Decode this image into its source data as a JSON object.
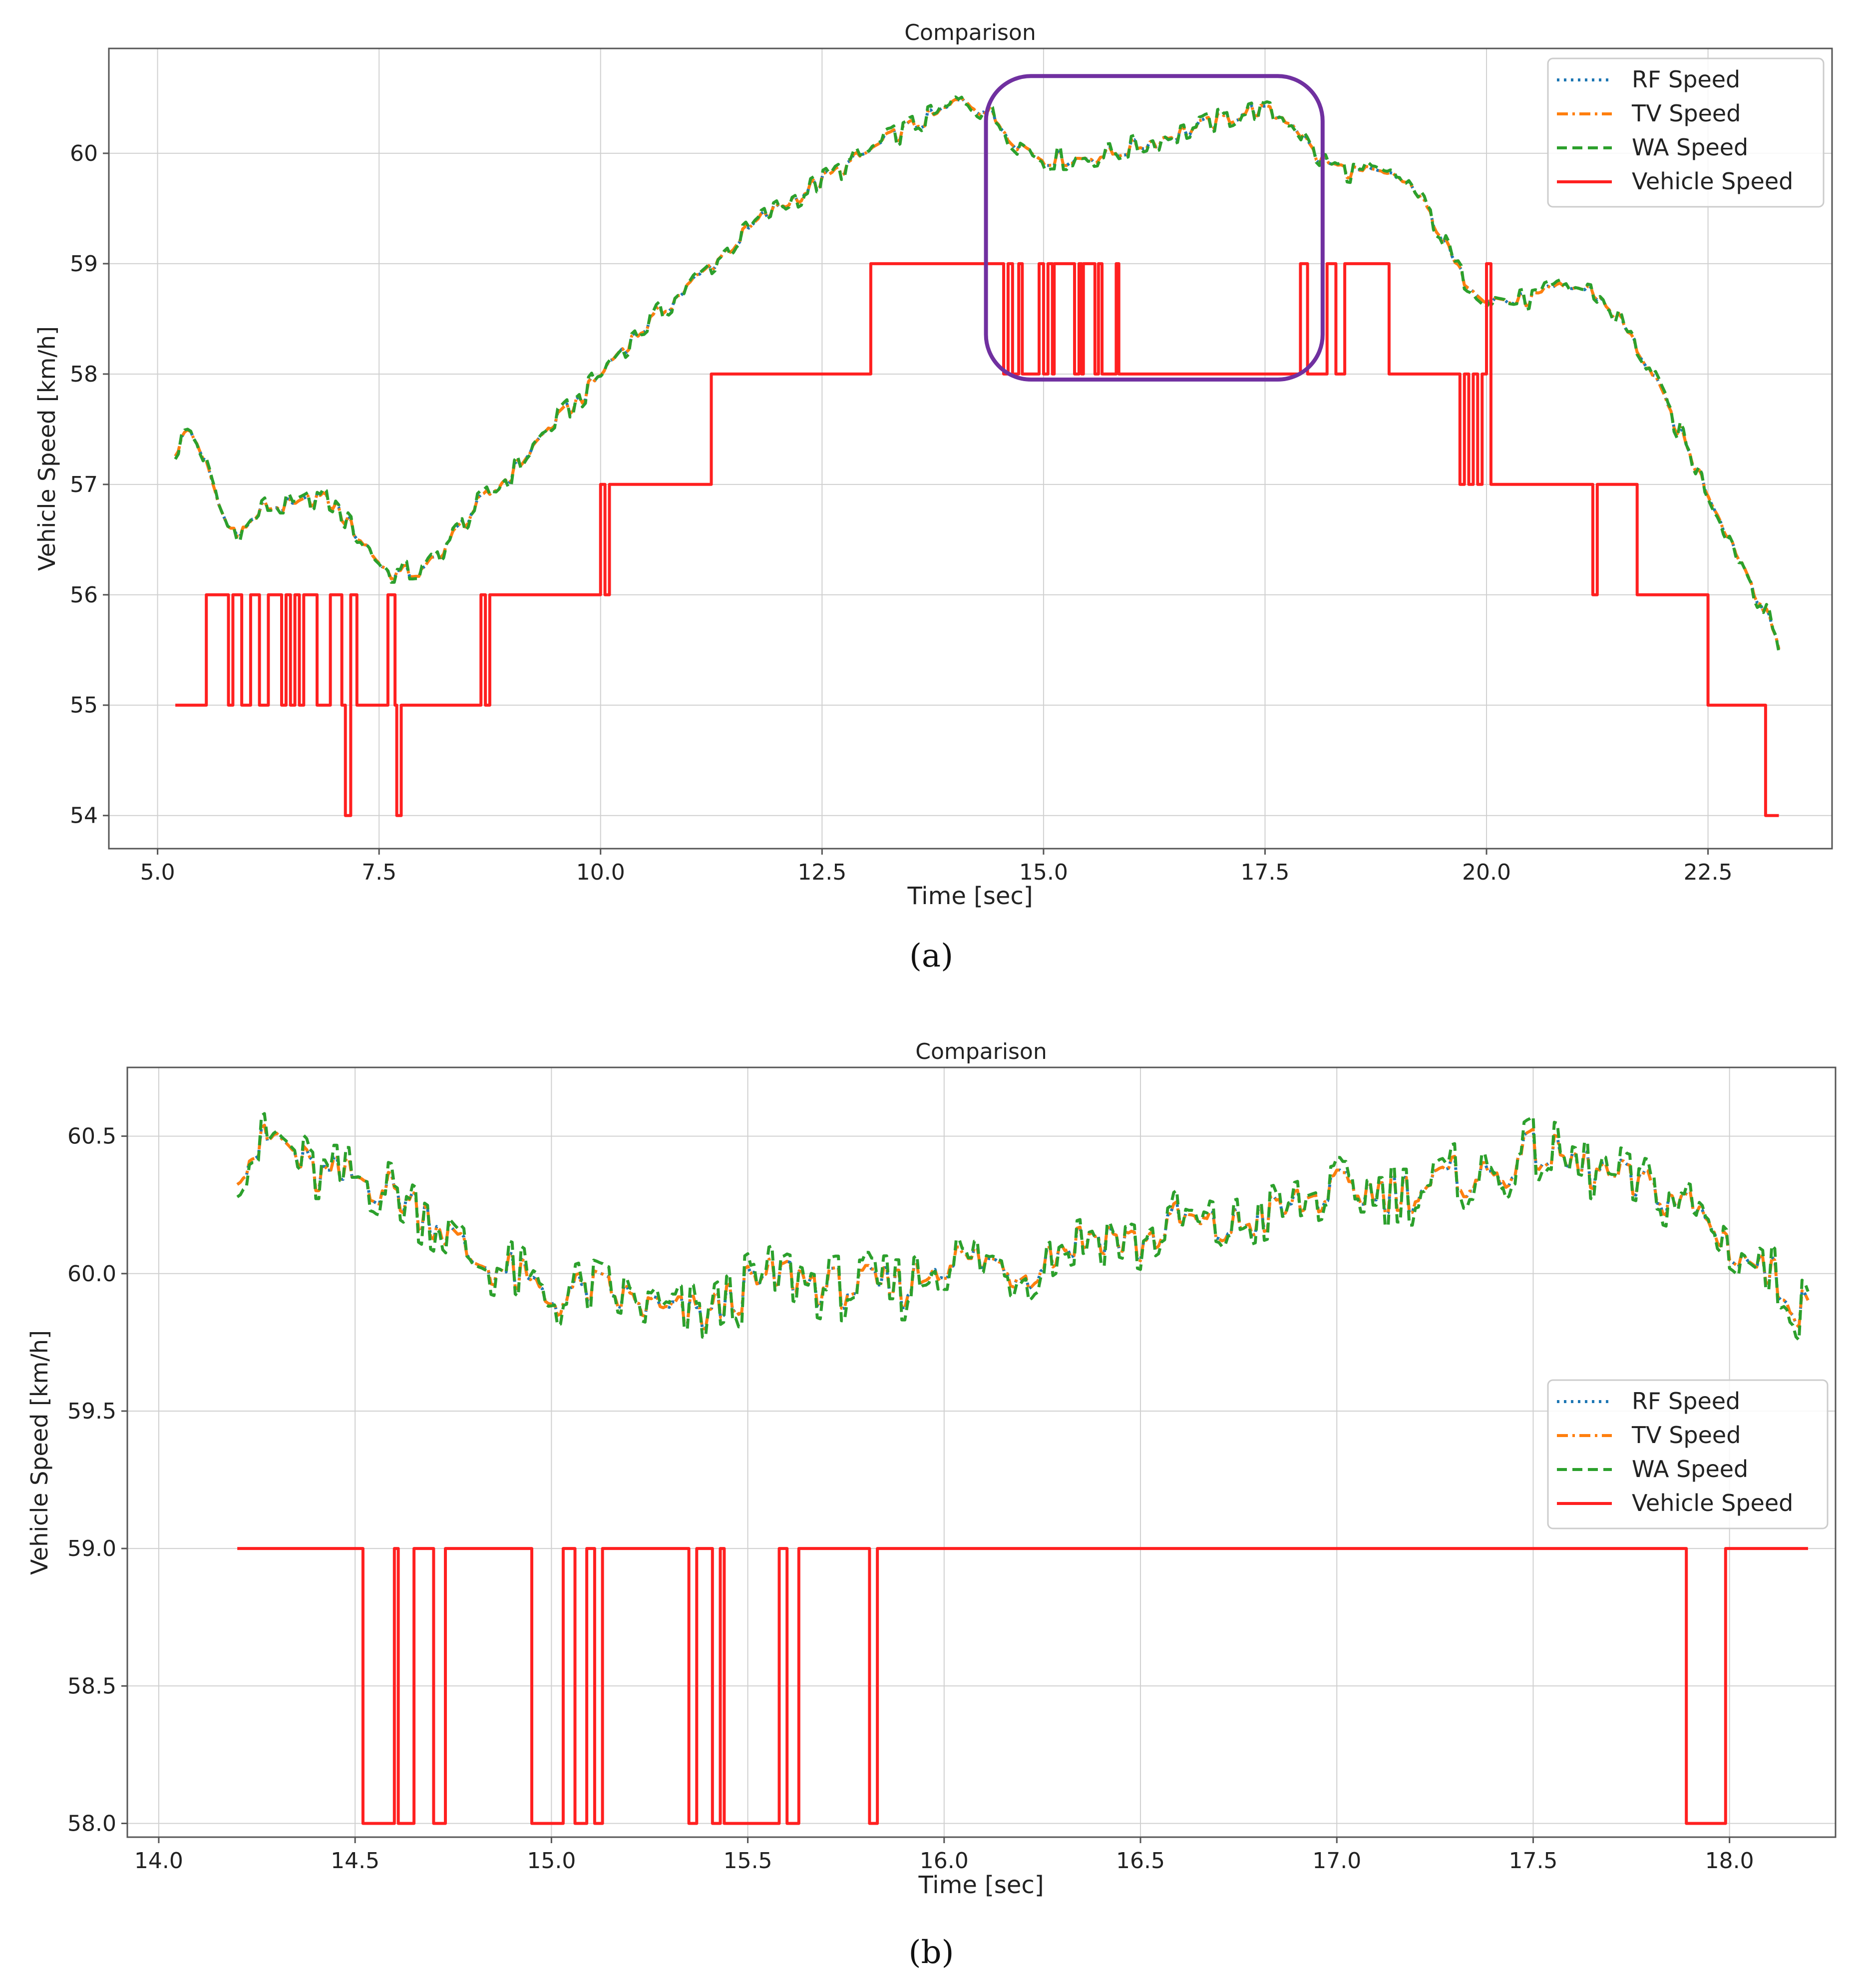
{
  "chart_data": [
    {
      "panel": "a",
      "type": "line",
      "title": "Comparison",
      "xlabel": "Time [sec]",
      "ylabel": "Vehicle Speed [km/h]",
      "xlim": [
        4.45,
        23.9
      ],
      "ylim": [
        53.7,
        60.95
      ],
      "xticks": [
        5.0,
        7.5,
        10.0,
        12.5,
        15.0,
        17.5,
        20.0,
        22.5
      ],
      "xtick_labels": [
        "5.0",
        "7.5",
        "10.0",
        "12.5",
        "15.0",
        "17.5",
        "20.0",
        "22.5"
      ],
      "yticks": [
        54,
        55,
        56,
        57,
        58,
        59,
        60
      ],
      "ytick_labels": [
        "54",
        "55",
        "56",
        "57",
        "58",
        "59",
        "60"
      ],
      "grid": true,
      "legend_position": "top-right",
      "annotations": [
        {
          "type": "rounded-rectangle",
          "color": "#7030a0",
          "x_range": [
            14.35,
            18.15
          ],
          "y_range": [
            57.95,
            60.7
          ],
          "note": "zoomed region shown in (b)"
        }
      ],
      "series": [
        {
          "name": "RF Speed",
          "color": "#1f77b4",
          "style": "dotted",
          "x": [
            5.2,
            5.35,
            5.5,
            5.65,
            5.8,
            6.0,
            6.2,
            6.4,
            6.6,
            6.8,
            7.0,
            7.2,
            7.4,
            7.6,
            7.8,
            8.0,
            8.3,
            8.6,
            9.0,
            9.4,
            9.8,
            10.2,
            10.6,
            11.0,
            11.4,
            11.8,
            12.2,
            12.6,
            13.0,
            13.4,
            13.8,
            14.1,
            14.4,
            14.7,
            15.0,
            15.4,
            15.8,
            16.2,
            16.6,
            17.0,
            17.4,
            17.8,
            18.1,
            18.4,
            18.8,
            19.1,
            19.4,
            19.7,
            20.0,
            20.3,
            20.6,
            20.9,
            21.2,
            21.5,
            21.8,
            22.1,
            22.4,
            22.7,
            23.0,
            23.3
          ],
          "values": [
            57.3,
            57.5,
            57.3,
            56.9,
            56.6,
            56.6,
            56.8,
            56.8,
            56.8,
            56.9,
            56.8,
            56.6,
            56.4,
            56.2,
            56.2,
            56.2,
            56.5,
            56.8,
            57.1,
            57.5,
            57.8,
            58.2,
            58.5,
            58.8,
            59.1,
            59.4,
            59.6,
            59.8,
            60.0,
            60.2,
            60.35,
            60.5,
            60.35,
            60.1,
            59.95,
            59.95,
            60.0,
            60.1,
            60.2,
            60.3,
            60.4,
            60.3,
            59.95,
            59.85,
            59.8,
            59.75,
            59.4,
            58.9,
            58.7,
            58.65,
            58.7,
            58.8,
            58.75,
            58.5,
            58.1,
            57.6,
            57.1,
            56.6,
            56.1,
            55.55
          ]
        },
        {
          "name": "TV Speed",
          "color": "#ff7f0e",
          "style": "dashdot",
          "x": [
            5.2,
            5.35,
            5.5,
            5.65,
            5.8,
            6.0,
            6.2,
            6.4,
            6.6,
            6.8,
            7.0,
            7.2,
            7.4,
            7.6,
            7.8,
            8.0,
            8.3,
            8.6,
            9.0,
            9.4,
            9.8,
            10.2,
            10.6,
            11.0,
            11.4,
            11.8,
            12.2,
            12.6,
            13.0,
            13.4,
            13.8,
            14.1,
            14.4,
            14.7,
            15.0,
            15.4,
            15.8,
            16.2,
            16.6,
            17.0,
            17.4,
            17.8,
            18.1,
            18.4,
            18.8,
            19.1,
            19.4,
            19.7,
            20.0,
            20.3,
            20.6,
            20.9,
            21.2,
            21.5,
            21.8,
            22.1,
            22.4,
            22.7,
            23.0,
            23.3
          ],
          "values": [
            57.3,
            57.5,
            57.3,
            56.9,
            56.6,
            56.6,
            56.8,
            56.8,
            56.8,
            56.9,
            56.8,
            56.6,
            56.4,
            56.2,
            56.2,
            56.2,
            56.5,
            56.8,
            57.1,
            57.5,
            57.8,
            58.2,
            58.5,
            58.8,
            59.1,
            59.4,
            59.6,
            59.8,
            60.0,
            60.2,
            60.35,
            60.5,
            60.35,
            60.1,
            59.95,
            59.95,
            60.0,
            60.1,
            60.2,
            60.3,
            60.4,
            60.3,
            59.95,
            59.85,
            59.8,
            59.75,
            59.4,
            58.9,
            58.7,
            58.65,
            58.7,
            58.8,
            58.75,
            58.5,
            58.1,
            57.6,
            57.1,
            56.6,
            56.1,
            55.55
          ]
        },
        {
          "name": "WA Speed",
          "color": "#2ca02c",
          "style": "dashed",
          "x": [
            5.2,
            5.35,
            5.5,
            5.65,
            5.8,
            6.0,
            6.2,
            6.4,
            6.6,
            6.8,
            7.0,
            7.2,
            7.4,
            7.6,
            7.8,
            8.0,
            8.3,
            8.6,
            9.0,
            9.4,
            9.8,
            10.2,
            10.6,
            11.0,
            11.4,
            11.8,
            12.2,
            12.6,
            13.0,
            13.4,
            13.8,
            14.1,
            14.4,
            14.7,
            15.0,
            15.4,
            15.8,
            16.2,
            16.6,
            17.0,
            17.4,
            17.8,
            18.1,
            18.4,
            18.8,
            19.1,
            19.4,
            19.7,
            20.0,
            20.3,
            20.6,
            20.9,
            21.2,
            21.5,
            21.8,
            22.1,
            22.4,
            22.7,
            23.0,
            23.3
          ],
          "values": [
            57.3,
            57.5,
            57.3,
            56.9,
            56.6,
            56.6,
            56.8,
            56.8,
            56.8,
            56.9,
            56.8,
            56.6,
            56.4,
            56.2,
            56.2,
            56.2,
            56.5,
            56.8,
            57.1,
            57.5,
            57.8,
            58.2,
            58.5,
            58.8,
            59.1,
            59.4,
            59.6,
            59.8,
            60.0,
            60.2,
            60.35,
            60.5,
            60.35,
            60.1,
            59.95,
            59.95,
            60.0,
            60.1,
            60.2,
            60.3,
            60.4,
            60.3,
            59.95,
            59.85,
            59.8,
            59.75,
            59.4,
            58.9,
            58.7,
            58.65,
            58.7,
            58.8,
            58.75,
            58.5,
            58.1,
            57.6,
            57.1,
            56.6,
            56.1,
            55.55
          ]
        },
        {
          "name": "Vehicle Speed",
          "color": "#ff2020",
          "style": "solid",
          "step": true,
          "x": [
            5.2,
            5.55,
            5.8,
            5.85,
            5.95,
            6.05,
            6.15,
            6.25,
            6.4,
            6.45,
            6.5,
            6.55,
            6.6,
            6.65,
            6.8,
            6.95,
            7.08,
            7.12,
            7.18,
            7.25,
            7.6,
            7.68,
            7.7,
            7.75,
            8.65,
            8.7,
            8.75,
            8.8,
            10.0,
            10.05,
            10.1,
            11.25,
            13.05,
            13.1,
            14.55,
            14.6,
            14.65,
            14.72,
            14.76,
            14.95,
            15.0,
            15.05,
            15.1,
            15.12,
            15.35,
            15.4,
            15.43,
            15.45,
            15.58,
            15.62,
            15.66,
            15.82,
            15.85,
            17.9,
            17.98,
            18.2,
            18.3,
            18.4,
            18.9,
            18.95,
            19.7,
            19.75,
            19.8,
            19.85,
            19.9,
            19.95,
            20.0,
            20.05,
            21.2,
            21.25,
            21.7,
            22.5,
            23.15,
            23.3
          ],
          "values": [
            55,
            56,
            55,
            56,
            55,
            56,
            55,
            56,
            55,
            56,
            55,
            56,
            55,
            56,
            55,
            56,
            55,
            54,
            56,
            55,
            56,
            55,
            54,
            55,
            56,
            55,
            56,
            56,
            57,
            56,
            57,
            58,
            59,
            59,
            58,
            59,
            58,
            59,
            58,
            59,
            58,
            59,
            58,
            59,
            58,
            59,
            58,
            59,
            58,
            59,
            58,
            59,
            58,
            59,
            58,
            59,
            58,
            59,
            58,
            58,
            57,
            58,
            57,
            58,
            57,
            58,
            59,
            57,
            56,
            57,
            56,
            55,
            54,
            54
          ]
        }
      ]
    },
    {
      "panel": "b",
      "type": "line",
      "title": "Comparison",
      "xlabel": "Time [sec]",
      "ylabel": "Vehicle Speed [km/h]",
      "xlim": [
        13.92,
        18.27
      ],
      "ylim": [
        57.95,
        60.75
      ],
      "xticks": [
        14.0,
        14.5,
        15.0,
        15.5,
        16.0,
        16.5,
        17.0,
        17.5,
        18.0
      ],
      "xtick_labels": [
        "14.0",
        "14.5",
        "15.0",
        "15.5",
        "16.0",
        "16.5",
        "17.0",
        "17.5",
        "18.0"
      ],
      "yticks": [
        58.0,
        58.5,
        59.0,
        59.5,
        60.0,
        60.5
      ],
      "ytick_labels": [
        "58.0",
        "58.5",
        "59.0",
        "59.5",
        "60.0",
        "60.5"
      ],
      "grid": true,
      "legend_position": "center-right",
      "series": [
        {
          "name": "RF Speed",
          "color": "#1f77b4",
          "style": "dotted",
          "x": [
            14.2,
            14.3,
            14.4,
            14.5,
            14.6,
            14.7,
            14.8,
            14.9,
            15.0,
            15.1,
            15.2,
            15.3,
            15.4,
            15.5,
            15.6,
            15.7,
            15.8,
            15.9,
            16.0,
            16.1,
            16.2,
            16.3,
            16.4,
            16.5,
            16.6,
            16.7,
            16.8,
            16.9,
            17.0,
            17.1,
            17.2,
            17.3,
            17.4,
            17.5,
            17.6,
            17.7,
            17.8,
            17.9,
            18.0,
            18.1,
            18.2
          ],
          "values": [
            60.4,
            60.5,
            60.35,
            60.35,
            60.3,
            60.2,
            60.05,
            60.0,
            59.9,
            59.95,
            59.9,
            59.85,
            59.85,
            59.95,
            60.0,
            59.95,
            59.95,
            59.95,
            60.05,
            60.05,
            60.0,
            60.1,
            60.15,
            60.1,
            60.2,
            60.15,
            60.2,
            60.25,
            60.3,
            60.3,
            60.3,
            60.35,
            60.35,
            60.45,
            60.4,
            60.35,
            60.3,
            60.25,
            60.1,
            60.0,
            59.85
          ]
        },
        {
          "name": "TV Speed",
          "color": "#ff7f0e",
          "style": "dashdot",
          "x": [
            14.2,
            14.3,
            14.4,
            14.5,
            14.6,
            14.7,
            14.8,
            14.9,
            15.0,
            15.1,
            15.2,
            15.3,
            15.4,
            15.5,
            15.6,
            15.7,
            15.8,
            15.9,
            16.0,
            16.1,
            16.2,
            16.3,
            16.4,
            16.5,
            16.6,
            16.7,
            16.8,
            16.9,
            17.0,
            17.1,
            17.2,
            17.3,
            17.4,
            17.5,
            17.6,
            17.7,
            17.8,
            17.9,
            18.0,
            18.1,
            18.2
          ],
          "values": [
            60.4,
            60.5,
            60.35,
            60.35,
            60.3,
            60.2,
            60.05,
            60.0,
            59.9,
            59.95,
            59.9,
            59.85,
            59.85,
            59.95,
            60.0,
            59.95,
            59.95,
            59.95,
            60.05,
            60.05,
            60.0,
            60.1,
            60.15,
            60.1,
            60.2,
            60.15,
            60.2,
            60.25,
            60.3,
            60.3,
            60.3,
            60.35,
            60.35,
            60.45,
            60.4,
            60.35,
            60.3,
            60.25,
            60.1,
            60.0,
            59.85
          ]
        },
        {
          "name": "WA Speed",
          "color": "#2ca02c",
          "style": "dashed",
          "x": [
            14.2,
            14.3,
            14.4,
            14.5,
            14.6,
            14.7,
            14.8,
            14.9,
            15.0,
            15.1,
            15.2,
            15.3,
            15.4,
            15.5,
            15.6,
            15.7,
            15.8,
            15.9,
            16.0,
            16.1,
            16.2,
            16.3,
            16.4,
            16.5,
            16.6,
            16.7,
            16.8,
            16.9,
            17.0,
            17.1,
            17.2,
            17.3,
            17.4,
            17.5,
            17.6,
            17.7,
            17.8,
            17.9,
            18.0,
            18.1,
            18.2
          ],
          "values": [
            60.4,
            60.5,
            60.35,
            60.35,
            60.3,
            60.2,
            60.05,
            60.0,
            59.9,
            59.95,
            59.9,
            59.85,
            59.85,
            59.95,
            60.0,
            59.95,
            59.95,
            59.95,
            60.05,
            60.05,
            60.0,
            60.1,
            60.15,
            60.1,
            60.2,
            60.15,
            60.2,
            60.25,
            60.3,
            60.3,
            60.3,
            60.35,
            60.35,
            60.45,
            60.4,
            60.35,
            60.3,
            60.25,
            60.1,
            60.0,
            59.85
          ]
        },
        {
          "name": "Vehicle Speed",
          "color": "#ff2020",
          "style": "solid",
          "step": true,
          "x": [
            14.2,
            14.52,
            14.6,
            14.61,
            14.65,
            14.7,
            14.73,
            14.95,
            15.03,
            15.06,
            15.09,
            15.11,
            15.13,
            15.35,
            15.37,
            15.41,
            15.43,
            15.44,
            15.58,
            15.6,
            15.63,
            15.81,
            15.83,
            17.89,
            17.99,
            18.2
          ],
          "values": [
            59,
            58,
            59,
            58,
            59,
            58,
            59,
            58,
            59,
            58,
            59,
            58,
            59,
            58,
            59,
            58,
            59,
            58,
            59,
            58,
            59,
            58,
            59,
            58,
            59,
            59
          ]
        }
      ]
    }
  ],
  "legend_labels": [
    "RF Speed",
    "TV Speed",
    "WA Speed",
    "Vehicle Speed"
  ],
  "subfigure_labels": [
    "(a)",
    "(b)"
  ]
}
